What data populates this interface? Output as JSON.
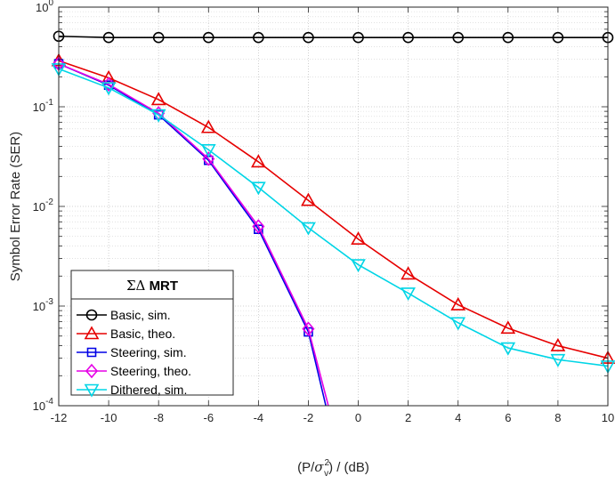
{
  "chart_data": {
    "type": "line",
    "xlabel": "(P/σ²ᵥ) / (dB)",
    "xlabel_parts": {
      "pre": "(P/",
      "sym": "σ",
      "sup": "2",
      "sub": "v",
      "post": ") / (dB)"
    },
    "ylabel": "Symbol Error Rate (SER)",
    "xlim": [
      -12,
      10
    ],
    "ylim": [
      0.0001,
      1
    ],
    "yscale": "log",
    "grid": true,
    "x_ticks": [
      "-12",
      "-10",
      "-8",
      "-6",
      "-4",
      "-2",
      "0",
      "2",
      "4",
      "6",
      "8",
      "10"
    ],
    "y_ticks": [
      {
        "base": "10",
        "exp": "-4"
      },
      {
        "base": "10",
        "exp": "-3"
      },
      {
        "base": "10",
        "exp": "-2"
      },
      {
        "base": "10",
        "exp": "-1"
      },
      {
        "base": "10",
        "exp": "0"
      }
    ],
    "legend": {
      "title": "ΣΔ MRT",
      "title_sym": "ΣΔ",
      "title_text": "MRT",
      "location": "bottom-left"
    },
    "series": [
      {
        "name": "Basic, sim.",
        "color": "#000000",
        "marker": "circle",
        "x": [
          -12,
          -10,
          -8,
          -6,
          -4,
          -2,
          0,
          2,
          4,
          6,
          8,
          10
        ],
        "y": [
          0.51,
          0.495,
          0.495,
          0.495,
          0.495,
          0.495,
          0.495,
          0.495,
          0.495,
          0.495,
          0.495,
          0.495
        ]
      },
      {
        "name": "Basic, theo.",
        "color": "#e60000",
        "marker": "triangle-up",
        "x": [
          -12,
          -10,
          -8,
          -6,
          -4,
          -2,
          0,
          2,
          4,
          6,
          8,
          10
        ],
        "y": [
          0.29,
          0.195,
          0.118,
          0.062,
          0.028,
          0.0115,
          0.0047,
          0.0021,
          0.00103,
          0.0006,
          0.0004,
          0.0003
        ]
      },
      {
        "name": "Steering, sim.",
        "color": "#0000e6",
        "marker": "square",
        "x": [
          -12,
          -10,
          -8,
          -6,
          -4,
          -2,
          -1.3
        ],
        "y": [
          0.27,
          0.165,
          0.083,
          0.029,
          0.0059,
          0.00055,
          0.0001
        ]
      },
      {
        "name": "Steering, theo.",
        "color": "#e600e6",
        "marker": "diamond",
        "x": [
          -12,
          -10,
          -8,
          -6,
          -4,
          -2,
          -1.2
        ],
        "y": [
          0.27,
          0.168,
          0.086,
          0.03,
          0.0063,
          0.00059,
          0.0001
        ]
      },
      {
        "name": "Dithered, sim.",
        "color": "#00d5e6",
        "marker": "triangle-down",
        "x": [
          -12,
          -10,
          -8,
          -6,
          -4,
          -2,
          0,
          2,
          4,
          6,
          8,
          10
        ],
        "y": [
          0.24,
          0.155,
          0.083,
          0.037,
          0.0155,
          0.0061,
          0.0026,
          0.00135,
          0.00068,
          0.00038,
          0.00029,
          0.00025
        ]
      }
    ]
  }
}
